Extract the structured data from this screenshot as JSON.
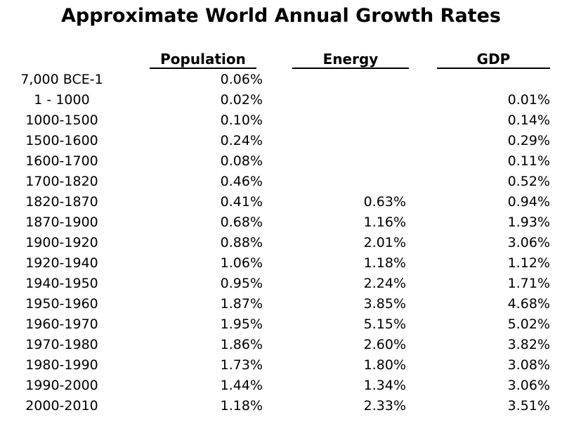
{
  "title": "Approximate World Annual Growth Rates",
  "headers": {
    "population": "Population",
    "energy": "Energy",
    "gdp": "GDP"
  },
  "rows": [
    {
      "period": "7,000 BCE-1",
      "population": "0.06%",
      "energy": "",
      "gdp": ""
    },
    {
      "period": "1 - 1000",
      "population": "0.02%",
      "energy": "",
      "gdp": "0.01%"
    },
    {
      "period": "1000-1500",
      "population": "0.10%",
      "energy": "",
      "gdp": "0.14%"
    },
    {
      "period": "1500-1600",
      "population": "0.24%",
      "energy": "",
      "gdp": "0.29%"
    },
    {
      "period": "1600-1700",
      "population": "0.08%",
      "energy": "",
      "gdp": "0.11%"
    },
    {
      "period": "1700-1820",
      "population": "0.46%",
      "energy": "",
      "gdp": "0.52%"
    },
    {
      "period": "1820-1870",
      "population": "0.41%",
      "energy": "0.63%",
      "gdp": "0.94%"
    },
    {
      "period": "1870-1900",
      "population": "0.68%",
      "energy": "1.16%",
      "gdp": "1.93%"
    },
    {
      "period": "1900-1920",
      "population": "0.88%",
      "energy": "2.01%",
      "gdp": "3.06%"
    },
    {
      "period": "1920-1940",
      "population": "1.06%",
      "energy": "1.18%",
      "gdp": "1.12%"
    },
    {
      "period": "1940-1950",
      "population": "0.95%",
      "energy": "2.24%",
      "gdp": "1.71%"
    },
    {
      "period": "1950-1960",
      "population": "1.87%",
      "energy": "3.85%",
      "gdp": "4.68%"
    },
    {
      "period": "1960-1970",
      "population": "1.95%",
      "energy": "5.15%",
      "gdp": "5.02%"
    },
    {
      "period": "1970-1980",
      "population": "1.86%",
      "energy": "2.60%",
      "gdp": "3.82%"
    },
    {
      "period": "1980-1990",
      "population": "1.73%",
      "energy": "1.80%",
      "gdp": "3.08%"
    },
    {
      "period": "1990-2000",
      "population": "1.44%",
      "energy": "1.34%",
      "gdp": "3.06%"
    },
    {
      "period": "2000-2010",
      "population": "1.18%",
      "energy": "2.33%",
      "gdp": "3.51%"
    }
  ]
}
